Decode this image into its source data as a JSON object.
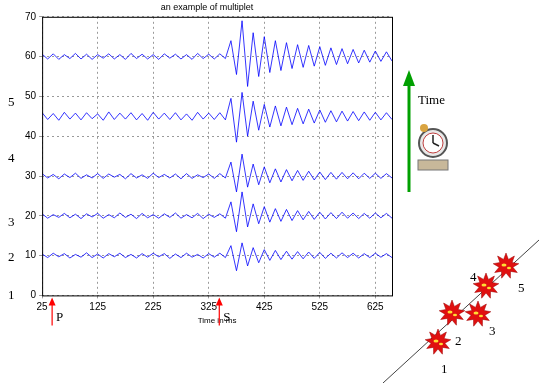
{
  "chart_data": {
    "type": "line",
    "title": "an example of multiplet",
    "xlabel": "Time in ms",
    "x": [
      25,
      35,
      45,
      55,
      65,
      75,
      85,
      95,
      105,
      115,
      125,
      135,
      145,
      155,
      165,
      175,
      185,
      195,
      205,
      215,
      225,
      235,
      245,
      255,
      265,
      275,
      285,
      295,
      305,
      315,
      325,
      335,
      345,
      355,
      365,
      375,
      385,
      395,
      405,
      415,
      425,
      435,
      445,
      455,
      465,
      475,
      485,
      495,
      505,
      515,
      525,
      535,
      545,
      555,
      565,
      575,
      585,
      595,
      605,
      615,
      625,
      635,
      645,
      655
    ],
    "series": [
      {
        "color": "#0000ff",
        "values": [
          10.4,
          9.5,
          10.6,
          9.7,
          10.5,
          9.4,
          10.3,
          9.6,
          10.7,
          9.5,
          10.4,
          9.4,
          10.5,
          9.7,
          10.6,
          9.5,
          10.3,
          9.4,
          10.5,
          9.6,
          10.6,
          9.7,
          10.5,
          9.3,
          10.4,
          9.5,
          10.6,
          9.6,
          10.3,
          9.4,
          10.5,
          9.6,
          10.6,
          9.5,
          12.5,
          6.2,
          13.2,
          7.4,
          12.0,
          8.2,
          11.5,
          8.8,
          11.3,
          9.0,
          11.1,
          9.1,
          11.0,
          9.2,
          10.9,
          9.3,
          10.8,
          9.3,
          10.6,
          9.4,
          10.7,
          9.5,
          10.6,
          9.4,
          10.5,
          9.5,
          10.6,
          9.6,
          10.5,
          9.5
        ]
      },
      {
        "color": "#0000ff",
        "values": [
          20.5,
          19.4,
          20.3,
          19.6,
          20.6,
          19.5,
          20.4,
          19.3,
          20.5,
          19.7,
          20.6,
          19.4,
          20.3,
          19.5,
          20.7,
          19.6,
          20.4,
          19.3,
          20.6,
          19.5,
          20.3,
          19.4,
          20.5,
          19.6,
          20.7,
          19.4,
          20.3,
          19.5,
          20.6,
          19.3,
          20.4,
          19.6,
          20.5,
          19.4,
          23.5,
          16.0,
          26.0,
          17.2,
          23.0,
          18.0,
          22.3,
          18.4,
          21.8,
          18.6,
          21.6,
          18.8,
          21.3,
          19.0,
          21.1,
          19.1,
          20.9,
          19.2,
          20.8,
          19.3,
          20.9,
          19.4,
          20.7,
          19.3,
          20.6,
          19.4,
          20.7,
          19.5,
          20.6,
          19.4
        ]
      },
      {
        "color": "#0000ff",
        "values": [
          30.6,
          29.5,
          30.4,
          29.3,
          30.5,
          29.6,
          30.7,
          29.4,
          30.3,
          29.5,
          30.6,
          29.4,
          30.5,
          29.7,
          30.4,
          29.3,
          30.6,
          29.5,
          30.3,
          29.4,
          30.7,
          29.6,
          30.4,
          29.5,
          30.5,
          29.3,
          30.6,
          29.4,
          30.3,
          29.6,
          30.5,
          29.4,
          30.6,
          29.5,
          33.5,
          26.0,
          35.5,
          27.2,
          33.0,
          27.8,
          32.3,
          28.3,
          31.8,
          28.5,
          31.6,
          28.8,
          31.4,
          28.9,
          31.2,
          29.0,
          31.0,
          29.1,
          30.9,
          29.2,
          30.9,
          29.3,
          30.8,
          29.3,
          30.7,
          29.4,
          30.7,
          29.4,
          30.6,
          29.5
        ]
      },
      {
        "color": "#0000ff",
        "values": [
          45.9,
          44.2,
          45.7,
          44.0,
          46.0,
          44.3,
          45.8,
          44.1,
          45.9,
          44.4,
          45.6,
          44.0,
          46.1,
          44.2,
          45.8,
          44.3,
          45.9,
          44.1,
          45.7,
          44.0,
          46.0,
          44.3,
          45.8,
          44.2,
          45.9,
          44.1,
          45.6,
          44.0,
          46.0,
          44.3,
          45.8,
          44.2,
          45.9,
          44.1,
          49.5,
          38.5,
          51.0,
          40.0,
          48.8,
          41.5,
          48.0,
          42.3,
          47.6,
          42.6,
          47.3,
          42.9,
          47.0,
          43.1,
          46.8,
          43.3,
          46.6,
          43.5,
          46.4,
          43.6,
          46.3,
          43.8,
          46.2,
          43.9,
          46.1,
          44.0,
          46.0,
          44.1,
          45.9,
          44.2
        ]
      },
      {
        "color": "#0000ff",
        "values": [
          60.6,
          59.4,
          60.7,
          59.3,
          60.5,
          59.5,
          60.8,
          59.4,
          60.6,
          59.3,
          60.5,
          59.6,
          60.7,
          59.4,
          60.5,
          59.3,
          60.8,
          59.5,
          60.6,
          59.4,
          60.5,
          59.3,
          60.7,
          59.6,
          60.6,
          59.4,
          60.5,
          59.3,
          60.8,
          59.5,
          60.6,
          59.4,
          60.7,
          59.5,
          64.0,
          55.5,
          69.0,
          52.5,
          66.0,
          55.0,
          65.0,
          56.0,
          64.0,
          56.5,
          63.5,
          57.0,
          63.0,
          57.3,
          62.8,
          57.6,
          62.5,
          57.8,
          62.2,
          58.0,
          62.0,
          58.2,
          61.8,
          58.4,
          61.6,
          58.6,
          61.4,
          58.8,
          61.2,
          58.9
        ]
      }
    ],
    "xlim": [
      25,
      655
    ],
    "xticks": [
      25,
      125,
      225,
      325,
      425,
      525,
      625
    ],
    "ylim": [
      0,
      70
    ],
    "yticks": [
      0,
      10,
      20,
      30,
      40,
      50,
      60,
      70
    ],
    "grid": true,
    "annotations": [
      {
        "text": "P",
        "x": 43
      },
      {
        "text": "S",
        "x": 344
      }
    ]
  },
  "trace_numbers": [
    "1",
    "2",
    "3",
    "4",
    "5"
  ],
  "diagram": {
    "time_label": "Time",
    "event_labels": [
      "1",
      "2",
      "3",
      "4",
      "5"
    ]
  }
}
